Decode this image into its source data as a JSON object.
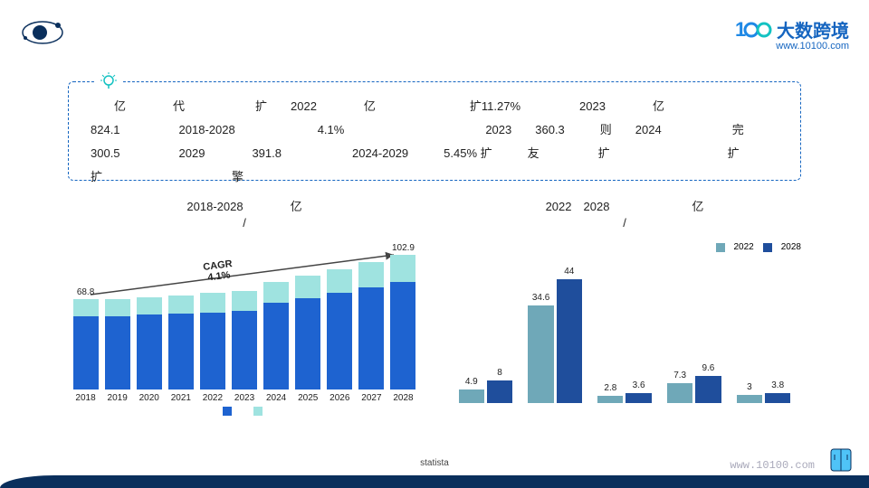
{
  "brand": {
    "name": "大数跨境",
    "url": "www.10100.com"
  },
  "info_text": "　　亿　　　　代　　　　　　扩　　2022　　　　亿　　　　　　　　扩11.27%　　　　　2023　　　　亿　　　　　　　　　824.1　　　　　2018-2028　　　　　　　4.1%　　　　　　　　　　　　2023　　360.3　　　则　　2024　　　　　　完　　　300.5　　　　　2029　　　　391.8　　　　　　2024-2029　　　5.45% 扩　　　友　　　　　扩　　　　　　　　　　扩　　　　　　　　　　扩　　　　　　　　　　　擎",
  "chart_left": {
    "title_line1": "2018-2028　　　　亿",
    "title_line2": "/",
    "type": "stacked-bar",
    "cagr_label": "CAGR",
    "cagr_value": "4.1%",
    "y_max": 110,
    "categories": [
      "2018",
      "2019",
      "2020",
      "2021",
      "2022",
      "2023",
      "2024",
      "2025",
      "2026",
      "2027",
      "2028"
    ],
    "series_a": [
      56,
      56,
      57,
      58,
      59,
      60,
      66,
      70,
      74,
      78,
      82
    ],
    "series_b": [
      12.8,
      13,
      13.5,
      14,
      15,
      15.5,
      16,
      17,
      18,
      19,
      20.9
    ],
    "label_first": "68.8",
    "label_last": "102.9",
    "color_a": "#1e63d0",
    "color_b": "#9fe3e0",
    "legend_a": "",
    "legend_b": ""
  },
  "chart_right": {
    "title_line1": "2022　2028　　　　　　　亿",
    "title_line2": "/",
    "type": "grouped-bar",
    "y_max": 48,
    "categories": [
      "",
      "",
      "",
      "",
      ""
    ],
    "v2022": [
      4.9,
      34.6,
      2.8,
      7.3,
      3.0
    ],
    "v2028": [
      8,
      44,
      3.6,
      9.6,
      3.8
    ],
    "color_2022": "#6fa8b8",
    "color_2028": "#1f4e9c",
    "legend_2022": "2022",
    "legend_2028": "2028"
  },
  "source": "statista",
  "footer_url": "www.10100.com"
}
